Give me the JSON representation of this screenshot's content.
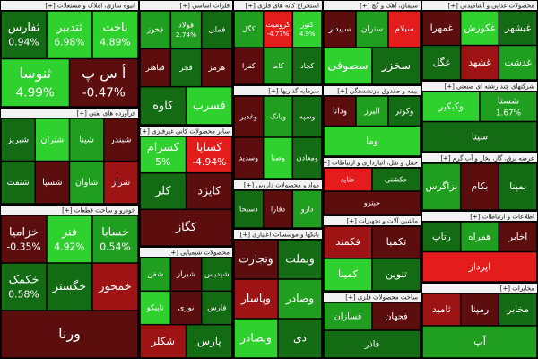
{
  "chart_data": {
    "type": "treemap",
    "sectors": [
      {
        "name": "انبوه سازی، املاک و مستغلات [+]",
        "tiles": [
          {
            "name": "ناخت",
            "value": 4.89,
            "value_label": "4.89%",
            "color": "#2fd12f"
          },
          {
            "name": "ثتدبیر",
            "value": 6.98,
            "value_label": "6.98%",
            "color": "#2fd12f"
          },
          {
            "name": "ثفارس",
            "value": 0.94,
            "value_label": "0.94%",
            "color": "#136b13"
          },
          {
            "name": "أ س پ",
            "value": -0.47,
            "value_label": "-0.47%",
            "color": "#5c0d0d"
          },
          {
            "name": "ثنوسا",
            "value": 4.99,
            "value_label": "4.99%",
            "color": "#2fd12f"
          }
        ]
      },
      {
        "name": "فرآورده های نفتی [+]",
        "tiles": [
          {
            "name": "شبندر",
            "color": "#5c0d0d"
          },
          {
            "name": "شپنا",
            "color": "#1f9e1f"
          },
          {
            "name": "شتران",
            "color": "#2fd12f"
          },
          {
            "name": "شبریز",
            "color": "#136b13"
          },
          {
            "name": "شراز",
            "color": "#9e1414"
          },
          {
            "name": "شاوان",
            "color": "#1f9e1f"
          },
          {
            "name": "شسپا",
            "color": "#5c0d0d"
          },
          {
            "name": "شنفت",
            "color": "#136b13"
          }
        ]
      },
      {
        "name": "خودرو و ساخت قطعات [+]",
        "tiles": [
          {
            "name": "خسابا",
            "value": 0.54,
            "value_label": "0.54%",
            "color": "#1f9e1f"
          },
          {
            "name": "فنر",
            "value": 4.92,
            "value_label": "4.92%",
            "color": "#2fd12f"
          },
          {
            "name": "خزامیا",
            "value": -0.35,
            "value_label": "-0.35%",
            "color": "#5c0d0d"
          },
          {
            "name": "خمحور",
            "color": "#9e1414"
          },
          {
            "name": "خگستر",
            "color": "#136b13"
          },
          {
            "name": "خکمک",
            "value": 0.58,
            "value_label": "0.58%",
            "color": "#136b13"
          },
          {
            "name": "ورنا",
            "color": "#5c0d0d"
          }
        ]
      },
      {
        "name": "فلزات اساسی [+]",
        "tiles": [
          {
            "name": "فملی",
            "color": "#136b13"
          },
          {
            "name": "فولاد",
            "value": 2.74,
            "value_label": "2.74%",
            "color": "#1f9e1f"
          },
          {
            "name": "فخوز",
            "color": "#1f9e1f"
          },
          {
            "name": "هرمز",
            "color": "#5c0d0d"
          },
          {
            "name": "فجر",
            "color": "#136b13"
          },
          {
            "name": "فباهنر",
            "color": "#5c0d0d"
          },
          {
            "name": "فسرب",
            "color": "#2fd12f"
          },
          {
            "name": "کاوه",
            "color": "#136b13"
          }
        ]
      },
      {
        "name": "سایر محصولات کانی غیرفلزی [+]",
        "tiles": [
          {
            "name": "کساپا",
            "value": -4.94,
            "value_label": "-4.94%",
            "color": "#e41c1c"
          },
          {
            "name": "کسرام",
            "value": 5,
            "value_label": "5%",
            "color": "#2fd12f"
          },
          {
            "name": "کایزد",
            "color": "#5c0d0d"
          },
          {
            "name": "کلر",
            "color": "#136b13"
          },
          {
            "name": "کگاز",
            "color": "#5c0d0d"
          }
        ]
      },
      {
        "name": "محصولات شیمیایی [+]",
        "tiles": [
          {
            "name": "شپدیس",
            "color": "#136b13"
          },
          {
            "name": "شیراز",
            "color": "#5c0d0d"
          },
          {
            "name": "شفن",
            "color": "#1f9e1f"
          },
          {
            "name": "فارس",
            "color": "#136b13"
          },
          {
            "name": "نوری",
            "color": "#5c0d0d"
          },
          {
            "name": "تاپیکو",
            "color": "#2fd12f"
          },
          {
            "name": "پارس",
            "color": "#136b13"
          },
          {
            "name": "شکلر",
            "color": "#9e1414"
          }
        ]
      },
      {
        "name": "استخراج کانه های فلزی [+]",
        "tiles": [
          {
            "name": "کنور",
            "value": 4.9,
            "value_label": "4.9%",
            "color": "#2fd12f"
          },
          {
            "name": "کرومیت",
            "value": -4.77,
            "value_label": "-4.77%",
            "color": "#e41c1c"
          },
          {
            "name": "کگل",
            "color": "#1f9e1f"
          },
          {
            "name": "کچاد",
            "color": "#136b13"
          },
          {
            "name": "کاما",
            "color": "#1f9e1f"
          },
          {
            "name": "کفرا",
            "color": "#5c0d0d"
          }
        ]
      },
      {
        "name": "سرمایه گذاریها [+]",
        "tiles": [
          {
            "name": "وسپه",
            "color": "#136b13"
          },
          {
            "name": "وبانک",
            "color": "#1f9e1f"
          },
          {
            "name": "وغدیر",
            "color": "#5c0d0d"
          },
          {
            "name": "ومعادن",
            "color": "#136b13"
          },
          {
            "name": "وصنا",
            "color": "#2fd12f"
          },
          {
            "name": "وسدید",
            "color": "#5c0d0d"
          }
        ]
      },
      {
        "name": "مواد و محصولات دارویی [+]",
        "tiles": [
          {
            "name": "دارو",
            "color": "#1f9e1f"
          },
          {
            "name": "دفارا",
            "color": "#5c0d0d"
          },
          {
            "name": "دسبحا",
            "color": "#136b13"
          }
        ]
      },
      {
        "name": "بانکها و موسسات اعتباری [+]",
        "tiles": [
          {
            "name": "وبملت",
            "color": "#136b13"
          },
          {
            "name": "وتجارت",
            "color": "#5c0d0d"
          },
          {
            "name": "وصادر",
            "color": "#1f9e1f"
          },
          {
            "name": "وپاسار",
            "color": "#9e1414"
          },
          {
            "name": "دی",
            "color": "#136b13"
          },
          {
            "name": "وبصادر",
            "color": "#2fd12f"
          }
        ]
      },
      {
        "name": "سیمان، آهک و گچ [+]",
        "tiles": [
          {
            "name": "سیلام",
            "color": "#e41c1c"
          },
          {
            "name": "ستران",
            "color": "#1f9e1f"
          },
          {
            "name": "سپیدار",
            "color": "#5c0d0d"
          },
          {
            "name": "سخزر",
            "color": "#136b13"
          },
          {
            "name": "سصوفی",
            "color": "#2fd12f"
          }
        ]
      },
      {
        "name": "بیمه و صندوق بازنشستگی [+]",
        "tiles": [
          {
            "name": "وکوثر",
            "color": "#136b13"
          },
          {
            "name": "البرز",
            "color": "#1f9e1f"
          },
          {
            "name": "ودانا",
            "color": "#5c0d0d"
          },
          {
            "name": "وما",
            "color": "#2fd12f"
          }
        ]
      },
      {
        "name": "حمل و نقل، انبارداری و ارتباطات [+]",
        "tiles": [
          {
            "name": "حکشتی",
            "color": "#136b13"
          },
          {
            "name": "حتاید",
            "color": "#e41c1c"
          },
          {
            "name": "حپترو",
            "color": "#5c0d0d"
          }
        ]
      },
      {
        "name": "ماشین آلات و تجهیزات [+]",
        "tiles": [
          {
            "name": "تکمبا",
            "color": "#5c0d0d"
          },
          {
            "name": "فکمند",
            "color": "#9e1414"
          },
          {
            "name": "تنوین",
            "color": "#136b13"
          },
          {
            "name": "کمینا",
            "color": "#2fd12f"
          }
        ]
      },
      {
        "name": "ساخت محصولات فلزی [+]",
        "tiles": [
          {
            "name": "فجهان",
            "color": "#5c0d0d"
          },
          {
            "name": "فسازان",
            "color": "#1f9e1f"
          },
          {
            "name": "فاذر",
            "color": "#136b13"
          }
        ]
      },
      {
        "name": "محصولات غذایی و آشامیدنی [+]",
        "tiles": [
          {
            "name": "غبشهر",
            "color": "#136b13"
          },
          {
            "name": "غکورش",
            "color": "#2fd12f"
          },
          {
            "name": "غمهرا",
            "color": "#5c0d0d"
          },
          {
            "name": "غدشت",
            "color": "#1f9e1f"
          },
          {
            "name": "غشهد",
            "color": "#9e1414"
          },
          {
            "name": "غگل",
            "color": "#136b13"
          }
        ]
      },
      {
        "name": "شرکتهای چند رشته ای صنعتی [+]",
        "tiles": [
          {
            "name": "شستا",
            "value": 1.67,
            "value_label": "1.67%",
            "color": "#1f9e1f"
          },
          {
            "name": "وکبکیر",
            "color": "#2fd12f"
          },
          {
            "name": "سیتا",
            "color": "#136b13"
          }
        ]
      },
      {
        "name": "عرضه برق، گاز، بخار و آب گرم [+]",
        "tiles": [
          {
            "name": "بمپنا",
            "color": "#136b13"
          },
          {
            "name": "بکام",
            "color": "#5c0d0d"
          },
          {
            "name": "بزاگرس",
            "color": "#1f9e1f"
          }
        ]
      },
      {
        "name": "اطلاعات و ارتباطات [+]",
        "tiles": [
          {
            "name": "اخابر",
            "color": "#5c0d0d"
          },
          {
            "name": "همراه",
            "color": "#1f9e1f"
          },
          {
            "name": "رتاپ",
            "color": "#136b13"
          },
          {
            "name": "اپرداز",
            "color": "#e41c1c"
          }
        ]
      },
      {
        "name": "مخابرات [+]",
        "tiles": [
          {
            "name": "مخابر",
            "color": "#136b13"
          },
          {
            "name": "رمپنا",
            "color": "#5c0d0d"
          },
          {
            "name": "ثامید",
            "color": "#9e1414"
          },
          {
            "name": "آپ",
            "color": "#1f9e1f"
          }
        ]
      }
    ]
  }
}
